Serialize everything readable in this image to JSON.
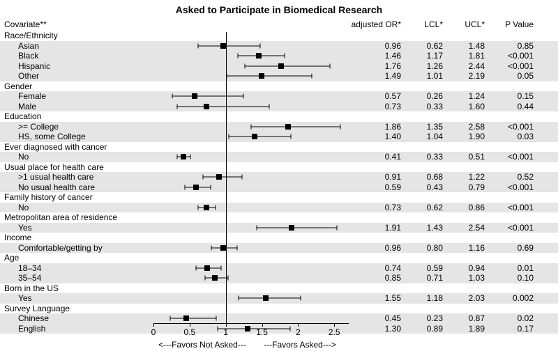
{
  "title": "Asked to Participate in Biomedical Research",
  "columns": {
    "covariate": "Covariate**",
    "or": "adjusted OR*",
    "lcl": "LCL*",
    "ucl": "UCL*",
    "p": "P Value"
  },
  "axis": {
    "min": 0,
    "max": 2.7,
    "ticks": [
      0,
      0.5,
      1,
      1.5,
      2,
      2.5
    ],
    "refline": 1,
    "favors_left": "<---Favors Not Asked---",
    "favors_right": "---Favors Asked--->"
  },
  "colors": {
    "background": "#ffffff",
    "shaded": "#e5e5e5",
    "line": "#000000",
    "marker": "#000000"
  },
  "rows": [
    {
      "type": "header",
      "label": "Race/Ethnicity",
      "shaded": false
    },
    {
      "type": "data",
      "label": "Asian",
      "or": 0.96,
      "lcl": 0.62,
      "ucl": 1.48,
      "p": "0.85",
      "shaded": true
    },
    {
      "type": "data",
      "label": "Black",
      "or": 1.46,
      "lcl": 1.17,
      "ucl": 1.81,
      "p": "<0.001",
      "shaded": true
    },
    {
      "type": "data",
      "label": "Hispanic",
      "or": 1.76,
      "lcl": 1.26,
      "ucl": 2.44,
      "p": "<0.001",
      "shaded": true
    },
    {
      "type": "data",
      "label": "Other",
      "or": 1.49,
      "lcl": 1.01,
      "ucl": 2.19,
      "p": "0.05",
      "shaded": true
    },
    {
      "type": "header",
      "label": "Gender",
      "shaded": false
    },
    {
      "type": "data",
      "label": "Female",
      "or": 0.57,
      "lcl": 0.26,
      "ucl": 1.24,
      "p": "0.15",
      "shaded": true
    },
    {
      "type": "data",
      "label": "Male",
      "or": 0.73,
      "lcl": 0.33,
      "ucl": 1.6,
      "p": "0.44",
      "shaded": true
    },
    {
      "type": "header",
      "label": "Education",
      "shaded": false
    },
    {
      "type": "data",
      "label": ">= College",
      "or": 1.86,
      "lcl": 1.35,
      "ucl": 2.58,
      "p": "<0.001",
      "shaded": true
    },
    {
      "type": "data",
      "label": "HS, some College",
      "or": 1.4,
      "lcl": 1.04,
      "ucl": 1.9,
      "p": "0.03",
      "shaded": true
    },
    {
      "type": "header",
      "label": "Ever diagnosed with cancer",
      "shaded": false
    },
    {
      "type": "data",
      "label": "No",
      "or": 0.41,
      "lcl": 0.33,
      "ucl": 0.51,
      "p": "<0.001",
      "shaded": true
    },
    {
      "type": "header",
      "label": "Usual place for health care",
      "shaded": false
    },
    {
      "type": "data",
      "label": ">1 usual health care",
      "or": 0.91,
      "lcl": 0.68,
      "ucl": 1.22,
      "p": "0.52",
      "shaded": true
    },
    {
      "type": "data",
      "label": "No usual health care",
      "or": 0.59,
      "lcl": 0.43,
      "ucl": 0.79,
      "p": "<0.001",
      "shaded": true
    },
    {
      "type": "header",
      "label": "Family history of cancer",
      "shaded": false
    },
    {
      "type": "data",
      "label": "No",
      "or": 0.73,
      "lcl": 0.62,
      "ucl": 0.86,
      "p": "<0.001",
      "shaded": true
    },
    {
      "type": "header",
      "label": "Metropolitan area of residence",
      "shaded": false
    },
    {
      "type": "data",
      "label": "Yes",
      "or": 1.91,
      "lcl": 1.43,
      "ucl": 2.54,
      "p": "<0.001",
      "shaded": true
    },
    {
      "type": "header",
      "label": "Income",
      "shaded": false
    },
    {
      "type": "data",
      "label": "Comfortable/getting by",
      "or": 0.96,
      "lcl": 0.8,
      "ucl": 1.16,
      "p": "0.69",
      "shaded": true
    },
    {
      "type": "header",
      "label": "Age",
      "shaded": false
    },
    {
      "type": "data",
      "label": "18–34",
      "or": 0.74,
      "lcl": 0.59,
      "ucl": 0.94,
      "p": "0.01",
      "shaded": true
    },
    {
      "type": "data",
      "label": "35–54",
      "or": 0.85,
      "lcl": 0.71,
      "ucl": 1.03,
      "p": "0.10",
      "shaded": true
    },
    {
      "type": "header",
      "label": "Born in the US",
      "shaded": false
    },
    {
      "type": "data",
      "label": "Yes",
      "or": 1.55,
      "lcl": 1.18,
      "ucl": 2.03,
      "p": "0.002",
      "shaded": true
    },
    {
      "type": "header",
      "label": "Survey Language",
      "shaded": false
    },
    {
      "type": "data",
      "label": "Chinese",
      "or": 0.45,
      "lcl": 0.23,
      "ucl": 0.87,
      "p": "0.02",
      "shaded": true
    },
    {
      "type": "data",
      "label": "English",
      "or": 1.3,
      "lcl": 0.89,
      "ucl": 1.89,
      "p": "0.17",
      "shaded": true
    }
  ]
}
